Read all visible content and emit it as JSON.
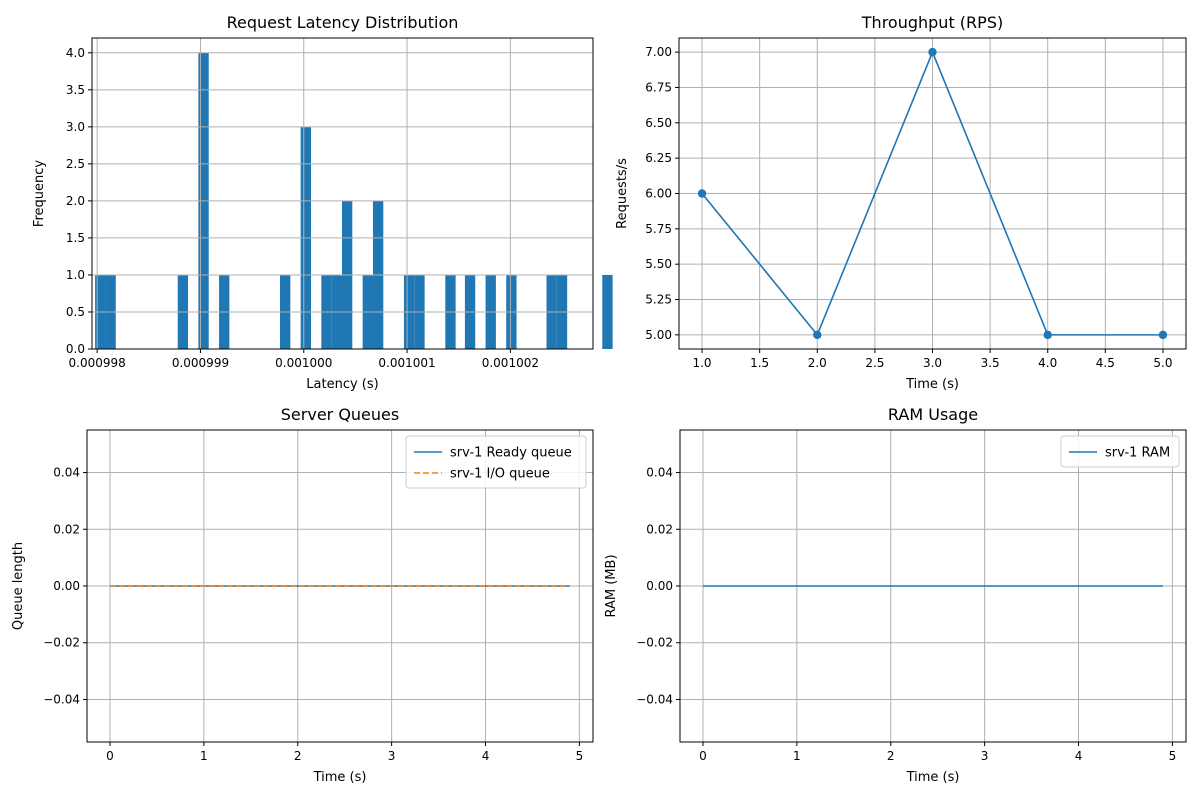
{
  "chart_data": [
    {
      "type": "bar",
      "title": "Request Latency Distribution",
      "xlabel": "Latency (s)",
      "ylabel": "Frequency",
      "xlim": [
        0.00099795,
        0.0010028
      ],
      "ylim": [
        0,
        4.2
      ],
      "x_ticks": [
        0.000998,
        0.000999,
        0.001,
        0.001001,
        0.001002
      ],
      "x_tick_labels": [
        "0.000998",
        "0.000999",
        "0.001000",
        "0.001001",
        "0.001002"
      ],
      "y_ticks": [
        0,
        0.5,
        1,
        1.5,
        2,
        2.5,
        3,
        3.5,
        4
      ],
      "y_tick_labels": [
        "0.0",
        "0.5",
        "1.0",
        "1.5",
        "2.0",
        "2.5",
        "3.0",
        "3.5",
        "4.0"
      ],
      "grid": true,
      "color": "#1f77b4",
      "bin_width": 1e-07,
      "bins": [
        {
          "x": 0.00099798,
          "count": 1
        },
        {
          "x": 0.00099808,
          "count": 1
        },
        {
          "x": 0.00099878,
          "count": 1
        },
        {
          "x": 0.00099898,
          "count": 4
        },
        {
          "x": 0.00099918,
          "count": 1
        },
        {
          "x": 0.00099977,
          "count": 1
        },
        {
          "x": 0.00099997,
          "count": 3
        },
        {
          "x": 0.00100017,
          "count": 1
        },
        {
          "x": 0.00100027,
          "count": 1
        },
        {
          "x": 0.00100037,
          "count": 2
        },
        {
          "x": 0.00100057,
          "count": 1
        },
        {
          "x": 0.00100067,
          "count": 2
        },
        {
          "x": 0.00100097,
          "count": 1
        },
        {
          "x": 0.00100107,
          "count": 1
        },
        {
          "x": 0.00100137,
          "count": 1
        },
        {
          "x": 0.00100156,
          "count": 1
        },
        {
          "x": 0.00100176,
          "count": 1
        },
        {
          "x": 0.00100196,
          "count": 1
        },
        {
          "x": 0.00100235,
          "count": 1
        },
        {
          "x": 0.00100245,
          "count": 1
        },
        {
          "x": 0.00100289,
          "count": 1
        }
      ]
    },
    {
      "type": "line",
      "title": "Throughput (RPS)",
      "xlabel": "Time (s)",
      "ylabel": "Requests/s",
      "xlim": [
        0.8,
        5.2
      ],
      "ylim": [
        4.9,
        7.1
      ],
      "x_ticks": [
        1.0,
        1.5,
        2.0,
        2.5,
        3.0,
        3.5,
        4.0,
        4.5,
        5.0
      ],
      "x_tick_labels": [
        "1.0",
        "1.5",
        "2.0",
        "2.5",
        "3.0",
        "3.5",
        "4.0",
        "4.5",
        "5.0"
      ],
      "y_ticks": [
        5.0,
        5.25,
        5.5,
        5.75,
        6.0,
        6.25,
        6.5,
        6.75,
        7.0
      ],
      "y_tick_labels": [
        "5.00",
        "5.25",
        "5.50",
        "5.75",
        "6.00",
        "6.25",
        "6.50",
        "6.75",
        "7.00"
      ],
      "grid": true,
      "series": [
        {
          "color": "#1f77b4",
          "style": "solid",
          "markers": true,
          "x": [
            1,
            2,
            3,
            4,
            5
          ],
          "y": [
            6,
            5,
            7,
            5,
            5
          ]
        }
      ]
    },
    {
      "type": "line",
      "title": "Server Queues",
      "xlabel": "Time (s)",
      "ylabel": "Queue length",
      "xlim": [
        -0.245,
        5.145
      ],
      "ylim": [
        -0.055,
        0.055
      ],
      "x_ticks": [
        0,
        1,
        2,
        3,
        4,
        5
      ],
      "x_tick_labels": [
        "0",
        "1",
        "2",
        "3",
        "4",
        "5"
      ],
      "y_ticks": [
        -0.04,
        -0.02,
        0.0,
        0.02,
        0.04
      ],
      "y_tick_labels": [
        "−0.04",
        "−0.02",
        "0.00",
        "0.02",
        "0.04"
      ],
      "grid": true,
      "legend": "top-right",
      "series": [
        {
          "name": "srv-1 Ready queue",
          "color": "#1f77b4",
          "style": "solid",
          "x": [
            0,
            4.9
          ],
          "y": [
            0,
            0
          ]
        },
        {
          "name": "srv-1 I/O queue",
          "color": "#ff7f0e",
          "style": "dashed",
          "x": [
            0,
            4.9
          ],
          "y": [
            0,
            0
          ]
        }
      ]
    },
    {
      "type": "line",
      "title": "RAM Usage",
      "xlabel": "Time (s)",
      "ylabel": "RAM (MB)",
      "xlim": [
        -0.245,
        5.145
      ],
      "ylim": [
        -0.055,
        0.055
      ],
      "x_ticks": [
        0,
        1,
        2,
        3,
        4,
        5
      ],
      "x_tick_labels": [
        "0",
        "1",
        "2",
        "3",
        "4",
        "5"
      ],
      "y_ticks": [
        -0.04,
        -0.02,
        0.0,
        0.02,
        0.04
      ],
      "y_tick_labels": [
        "−0.04",
        "−0.02",
        "0.00",
        "0.02",
        "0.04"
      ],
      "grid": true,
      "legend": "top-right",
      "series": [
        {
          "name": "srv-1 RAM",
          "color": "#1f77b4",
          "style": "solid",
          "x": [
            0,
            4.9
          ],
          "y": [
            0,
            0
          ]
        }
      ]
    }
  ]
}
